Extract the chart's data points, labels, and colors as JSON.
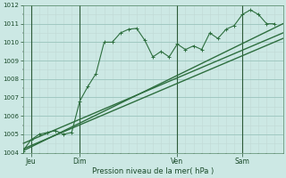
{
  "bg_color": "#cce8e4",
  "plot_bg_color": "#cce8e4",
  "major_grid_color": "#99c4bc",
  "minor_grid_color": "#c0d8d4",
  "line_color": "#2d6e3e",
  "trend_color": "#2d6e3e",
  "ylim": [
    1004,
    1012
  ],
  "xlim": [
    0,
    32
  ],
  "xlabel": "Pression niveau de la mer( hPa )",
  "day_labels": [
    "Jeu",
    "Dim",
    "Ven",
    "Sam"
  ],
  "day_positions": [
    1,
    7,
    19,
    27
  ],
  "vline_positions": [
    1,
    7,
    19,
    27
  ],
  "series1_x": [
    0,
    1,
    2,
    3,
    4,
    5,
    6,
    7,
    8,
    9,
    10,
    11,
    12,
    13,
    14,
    15,
    16,
    17,
    18,
    19,
    20,
    21,
    22,
    23,
    24,
    25,
    26,
    27,
    28,
    29,
    30,
    31
  ],
  "series1_y": [
    1004.1,
    1004.7,
    1005.0,
    1005.1,
    1005.2,
    1005.0,
    1005.1,
    1006.8,
    1007.6,
    1008.3,
    1010.0,
    1010.0,
    1010.5,
    1010.7,
    1010.75,
    1010.1,
    1009.2,
    1009.5,
    1009.2,
    1009.9,
    1009.6,
    1009.8,
    1009.6,
    1010.5,
    1010.2,
    1010.7,
    1010.9,
    1011.5,
    1011.75,
    1011.5,
    1011.0,
    1011.0
  ],
  "series2_x": [
    0,
    32
  ],
  "series2_y": [
    1004.1,
    1011.0
  ],
  "series3_x": [
    0,
    32
  ],
  "series3_y": [
    1004.5,
    1010.5
  ],
  "series4_x": [
    0,
    32
  ],
  "series4_y": [
    1004.2,
    1010.2
  ]
}
